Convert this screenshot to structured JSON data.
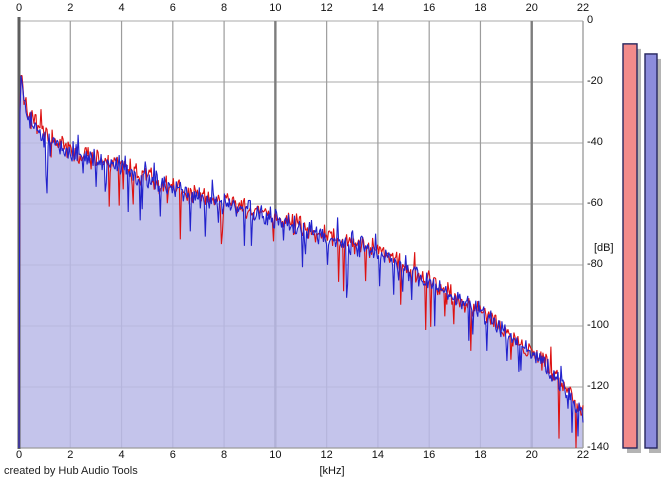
{
  "app": {
    "credit": "created by Hub Audio Tools"
  },
  "chart_data": {
    "type": "area",
    "title": "",
    "xlabel": "[kHz]",
    "ylabel": "[dB]",
    "xlim": [
      0,
      22
    ],
    "ylim": [
      -140,
      0
    ],
    "x_ticks": [
      0,
      2,
      4,
      6,
      8,
      10,
      12,
      14,
      16,
      18,
      20,
      22
    ],
    "y_ticks": [
      0,
      -20,
      -40,
      -60,
      -80,
      -100,
      -120,
      -140
    ],
    "grid": true,
    "major_x_ticks": [
      0,
      10,
      20
    ],
    "legend": "none",
    "description": "Two overlaid FFT audio spectrum traces (red and blue) falling from about -17 dB near 0 kHz to about -130 dB at 22 kHz; the blue trace has a light lavender area fill; two vertical level-meter bars (red and blue) sit to the right of the plot.",
    "envelope_db_by_khz": [
      [
        0,
        -140
      ],
      [
        0.04,
        -28
      ],
      [
        0.08,
        -17
      ],
      [
        0.12,
        -20
      ],
      [
        0.2,
        -26
      ],
      [
        0.35,
        -30.5
      ],
      [
        0.5,
        -33.5
      ],
      [
        0.8,
        -36.5
      ],
      [
        1,
        -38
      ],
      [
        1.5,
        -41
      ],
      [
        2,
        -43
      ],
      [
        3,
        -45.5
      ],
      [
        4,
        -48
      ],
      [
        5,
        -52
      ],
      [
        6,
        -55
      ],
      [
        7,
        -57.5
      ],
      [
        8,
        -60
      ],
      [
        9,
        -62.5
      ],
      [
        10,
        -65
      ],
      [
        11,
        -68
      ],
      [
        12,
        -71
      ],
      [
        13,
        -73.5
      ],
      [
        14,
        -75.5
      ],
      [
        15,
        -80
      ],
      [
        16,
        -86
      ],
      [
        17,
        -91
      ],
      [
        18,
        -95.5
      ],
      [
        18.5,
        -99
      ],
      [
        19,
        -103
      ],
      [
        19.5,
        -106
      ],
      [
        20,
        -109
      ],
      [
        20.5,
        -113
      ],
      [
        21,
        -117
      ],
      [
        21.5,
        -122
      ],
      [
        22,
        -130
      ]
    ],
    "noise": {
      "jitter_db": 4.2,
      "dip_prob": 0.055,
      "dip_extra_db": 13,
      "peak_prob": 0.06,
      "peak_extra_db": 4.5,
      "points": 564
    },
    "series": [
      {
        "name": "red-spectrum-trace",
        "color": "#dd1111",
        "fill": false,
        "offset_db": 0.5,
        "seed": 7
      },
      {
        "name": "blue-spectrum-trace",
        "color": "#2222cc",
        "fill": true,
        "fill_color": "rgba(186,186,232,0.85)",
        "offset_db": 0,
        "seed": 13
      }
    ],
    "level_meters": [
      {
        "name": "red-level-meter",
        "value_db": -7.5,
        "fill": "#f28b8b",
        "border": "#26265e",
        "shadow": "#b4b4b4"
      },
      {
        "name": "blue-level-meter",
        "value_db": -10.8,
        "fill": "#8c8cdc",
        "border": "#26265e",
        "shadow": "#b4b4b4"
      }
    ]
  }
}
